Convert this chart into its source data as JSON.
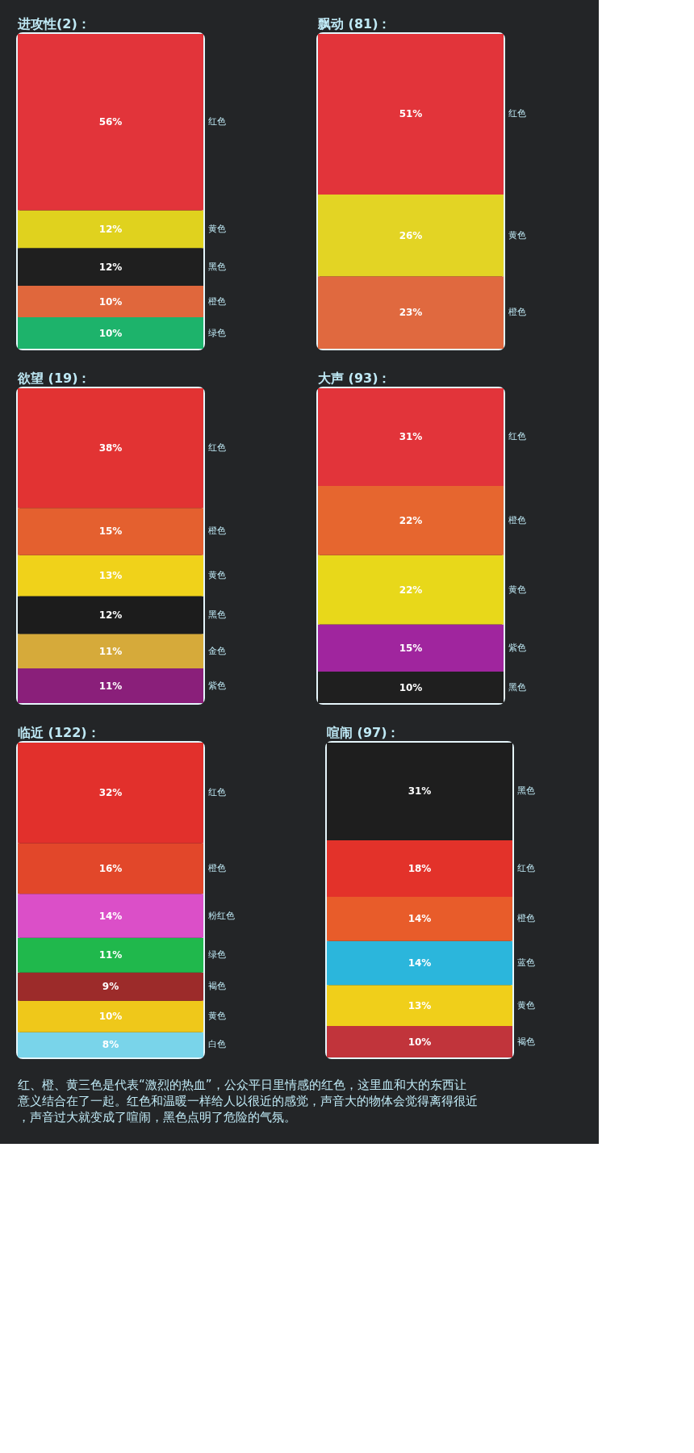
{
  "chart_data": [
    {
      "type": "bar",
      "stacked": true,
      "title": "进攻性(2)：",
      "categories": [
        null
      ],
      "series": [
        {
          "name": "绿色",
          "color": "#1db36b",
          "values": [
            10
          ],
          "value_labels": [
            "10%"
          ]
        },
        {
          "name": "橙色",
          "color": "#e0673c",
          "values": [
            10
          ],
          "value_labels": [
            "10%"
          ]
        },
        {
          "name": "黑色",
          "color": "#1f1f1f",
          "values": [
            12
          ],
          "value_labels": [
            "12%"
          ]
        },
        {
          "name": "黄色",
          "color": "#e0d21e",
          "values": [
            12
          ],
          "value_labels": [
            "12%"
          ]
        },
        {
          "name": "红色",
          "color": "#e2343a",
          "values": [
            56
          ],
          "value_labels": [
            "56%"
          ]
        }
      ]
    },
    {
      "type": "bar",
      "stacked": true,
      "title": "飘动 (81)：",
      "categories": [
        null
      ],
      "series": [
        {
          "name": "橙色",
          "color": "#e0693f",
          "values": [
            23
          ],
          "value_labels": [
            "23%"
          ]
        },
        {
          "name": "黄色",
          "color": "#e3d424",
          "values": [
            26
          ],
          "value_labels": [
            "26%"
          ]
        },
        {
          "name": "红色",
          "color": "#e2343a",
          "values": [
            51
          ],
          "value_labels": [
            "51%"
          ]
        }
      ]
    },
    {
      "type": "bar",
      "stacked": true,
      "title": "欲望 (19)：",
      "categories": [
        null
      ],
      "series": [
        {
          "name": "紫色",
          "color": "#8a1f7a",
          "values": [
            11
          ],
          "value_labels": [
            "11%"
          ]
        },
        {
          "name": "金色",
          "color": "#d6aa3a",
          "values": [
            11
          ],
          "value_labels": [
            "11%"
          ]
        },
        {
          "name": "黑色",
          "color": "#1c1c1c",
          "values": [
            12
          ],
          "value_labels": [
            "12%"
          ]
        },
        {
          "name": "黄色",
          "color": "#f0d21a",
          "values": [
            13
          ],
          "value_labels": [
            "13%"
          ]
        },
        {
          "name": "橙色",
          "color": "#e4602f",
          "values": [
            15
          ],
          "value_labels": [
            "15%"
          ]
        },
        {
          "name": "红色",
          "color": "#e23333",
          "values": [
            38
          ],
          "value_labels": [
            "38%"
          ]
        }
      ]
    },
    {
      "type": "bar",
      "stacked": true,
      "title": "大声 (93)：",
      "categories": [
        null
      ],
      "series": [
        {
          "name": "黑色",
          "color": "#1f1f1f",
          "values": [
            10
          ],
          "value_labels": [
            "10%"
          ]
        },
        {
          "name": "紫色",
          "color": "#a0259e",
          "values": [
            15
          ],
          "value_labels": [
            "15%"
          ]
        },
        {
          "name": "黄色",
          "color": "#e8d81a",
          "values": [
            22
          ],
          "value_labels": [
            "22%"
          ]
        },
        {
          "name": "橙色",
          "color": "#e6662f",
          "values": [
            22
          ],
          "value_labels": [
            "22%"
          ]
        },
        {
          "name": "红色",
          "color": "#e2343a",
          "values": [
            31
          ],
          "value_labels": [
            "31%"
          ]
        }
      ]
    },
    {
      "type": "bar",
      "stacked": true,
      "title": "临近 (122)：",
      "categories": [
        null
      ],
      "series": [
        {
          "name": "白色",
          "color": "#79d4ea",
          "values": [
            8
          ],
          "value_labels": [
            "8%"
          ]
        },
        {
          "name": "黄色",
          "color": "#efc81a",
          "values": [
            10
          ],
          "value_labels": [
            "10%"
          ]
        },
        {
          "name": "褐色",
          "color": "#9c2b2a",
          "values": [
            9
          ],
          "value_labels": [
            "9%"
          ]
        },
        {
          "name": "绿色",
          "color": "#20b84c",
          "values": [
            11
          ],
          "value_labels": [
            "11%"
          ]
        },
        {
          "name": "粉红色",
          "color": "#db4fc8",
          "values": [
            14
          ],
          "value_labels": [
            "14%"
          ]
        },
        {
          "name": "橙色",
          "color": "#e2472a",
          "values": [
            16
          ],
          "value_labels": [
            "16%"
          ]
        },
        {
          "name": "红色",
          "color": "#e2302c",
          "values": [
            32
          ],
          "value_labels": [
            "32%"
          ]
        }
      ]
    },
    {
      "type": "bar",
      "stacked": true,
      "title": "喧闹 (97)：",
      "categories": [
        null
      ],
      "series": [
        {
          "name": "褐色",
          "color": "#c1343b",
          "values": [
            10
          ],
          "value_labels": [
            "10%"
          ]
        },
        {
          "name": "黄色",
          "color": "#f0cf1a",
          "values": [
            13
          ],
          "value_labels": [
            "13%"
          ]
        },
        {
          "name": "蓝色",
          "color": "#2bb6dc",
          "values": [
            14
          ],
          "value_labels": [
            "14%"
          ]
        },
        {
          "name": "橙色",
          "color": "#e85c2a",
          "values": [
            14
          ],
          "value_labels": [
            "14%"
          ]
        },
        {
          "name": "红色",
          "color": "#e3322a",
          "values": [
            18
          ],
          "value_labels": [
            "18%"
          ]
        },
        {
          "name": "黑色",
          "color": "#1e1e1e",
          "values": [
            31
          ],
          "value_labels": [
            "31%"
          ]
        }
      ],
      "annotations": [
        "红、橙、黄三色是代表“激烈的热血”，公众平日里情感的红色，这里血和大的东西让意义结合在了一起。红色和温暖一样给人以很近的感觉，声音大的物体会觉得离得很近，声音过大就变成了喧闹，黑色点明了危险的气氛。"
      ]
    }
  ]
}
